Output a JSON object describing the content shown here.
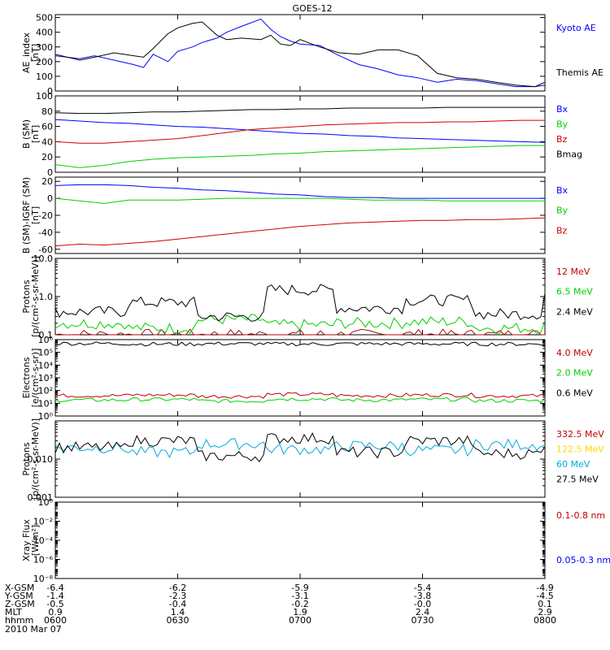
{
  "title": "GOES-12",
  "colors": {
    "black": "#000000",
    "blue": "#0000ff",
    "red": "#d00000",
    "green": "#00d000",
    "yellow": "#ffd800",
    "cyan": "#00aadd",
    "darkred": "#c00000"
  },
  "x_ticks": {
    "x_gsm": [
      "-6.4",
      "-6.2",
      "-5.9",
      "-5.4",
      "-4.9"
    ],
    "y_gsm": [
      "-1.4",
      "-2.3",
      "-3.1",
      "-3.8",
      "-4.5"
    ],
    "z_gsm": [
      "-0.5",
      "-0.4",
      "-0.2",
      "-0.0",
      "0.1"
    ],
    "mlt": [
      "0.9",
      "1.4",
      "1.9",
      "2.4",
      "2.9"
    ],
    "hhmm": [
      "0600",
      "0630",
      "0700",
      "0730",
      "0800"
    ]
  },
  "row_labels": {
    "x_gsm": "X-GSM",
    "y_gsm": "Y-GSM",
    "z_gsm": "Z-GSM",
    "mlt": "MLT",
    "hhmm": "hhmm"
  },
  "date": "2010 Mar 07",
  "chart_data": [
    {
      "type": "line",
      "ylabel": "AE_index [nT]",
      "ylabel_line1": "AE_index",
      "ylabel_line2": "[nT]",
      "ylim": [
        0,
        520
      ],
      "yticks": [
        "500",
        "400",
        "300",
        "200",
        "100",
        "0"
      ],
      "ytick_values": [
        500,
        400,
        300,
        200,
        100,
        0
      ],
      "x": [
        0,
        0.05,
        0.08,
        0.12,
        0.16,
        0.18,
        0.2,
        0.23,
        0.25,
        0.28,
        0.3,
        0.33,
        0.35,
        0.38,
        0.42,
        0.44,
        0.46,
        0.48,
        0.5,
        0.54,
        0.58,
        0.62,
        0.66,
        0.7,
        0.74,
        0.78,
        0.82,
        0.86,
        0.9,
        0.94,
        0.98,
        1
      ],
      "series": [
        {
          "name": "Kyoto AE",
          "color": "blue",
          "values": [
            240,
            220,
            240,
            210,
            180,
            160,
            250,
            200,
            270,
            300,
            330,
            360,
            400,
            440,
            490,
            420,
            370,
            340,
            320,
            310,
            240,
            180,
            150,
            110,
            90,
            60,
            80,
            70,
            50,
            30,
            30,
            40
          ]
        },
        {
          "name": "Themis AE",
          "color": "black",
          "values": [
            250,
            210,
            230,
            260,
            240,
            230,
            290,
            390,
            430,
            460,
            470,
            380,
            350,
            360,
            350,
            380,
            320,
            310,
            350,
            300,
            260,
            250,
            280,
            280,
            240,
            120,
            90,
            80,
            60,
            40,
            30,
            60
          ]
        }
      ]
    },
    {
      "type": "line",
      "ylabel": "B (SM) [nT]",
      "ylabel_line1": "B (SM)",
      "ylabel_line2": "[nT]",
      "ylim": [
        0,
        100
      ],
      "yticks": [
        "100",
        "80",
        "60",
        "40",
        "20",
        "0"
      ],
      "ytick_values": [
        100,
        80,
        60,
        40,
        20,
        0
      ],
      "x": [
        0,
        0.05,
        0.1,
        0.15,
        0.2,
        0.25,
        0.3,
        0.35,
        0.4,
        0.45,
        0.5,
        0.55,
        0.6,
        0.65,
        0.7,
        0.75,
        0.8,
        0.85,
        0.9,
        0.95,
        1
      ],
      "series": [
        {
          "name": "Bx",
          "color": "blue",
          "values": [
            69,
            67,
            65,
            64,
            62,
            60,
            59,
            57,
            55,
            53,
            51,
            50,
            48,
            47,
            45,
            44,
            43,
            42,
            41,
            40,
            39
          ]
        },
        {
          "name": "By",
          "color": "green",
          "values": [
            10,
            6,
            9,
            14,
            17,
            19,
            20,
            21,
            22,
            24,
            25,
            27,
            28,
            29,
            30,
            31,
            32,
            33,
            34,
            35,
            35
          ]
        },
        {
          "name": "Bz",
          "color": "red",
          "values": [
            40,
            38,
            38,
            40,
            42,
            44,
            48,
            52,
            56,
            58,
            60,
            62,
            63,
            64,
            65,
            65,
            66,
            66,
            67,
            68,
            68
          ]
        },
        {
          "name": "Bmag",
          "color": "black",
          "values": [
            78,
            77,
            77,
            78,
            79,
            79,
            80,
            81,
            82,
            82,
            83,
            83,
            84,
            84,
            84,
            84,
            85,
            85,
            85,
            85,
            85
          ]
        }
      ]
    },
    {
      "type": "line",
      "ylabel": "B (SM)-IGRF (SM) [nT]",
      "ylabel_line1": "B (SM)-IGRF (SM)",
      "ylabel_line2": "[nT]",
      "ylim": [
        -65,
        25
      ],
      "yticks": [
        "20",
        "0",
        "-20",
        "-40",
        "-60"
      ],
      "ytick_values": [
        20,
        0,
        -20,
        -40,
        -60
      ],
      "x": [
        0,
        0.05,
        0.1,
        0.15,
        0.2,
        0.25,
        0.3,
        0.35,
        0.4,
        0.45,
        0.5,
        0.55,
        0.6,
        0.65,
        0.7,
        0.75,
        0.8,
        0.85,
        0.9,
        0.95,
        1
      ],
      "series": [
        {
          "name": "Bx",
          "color": "blue",
          "values": [
            15,
            16,
            16,
            15,
            13,
            12,
            10,
            9,
            7,
            5,
            4,
            2,
            1,
            1,
            0,
            0,
            0,
            0,
            0,
            0,
            0
          ]
        },
        {
          "name": "By",
          "color": "green",
          "values": [
            0,
            -3,
            -6,
            -2,
            -2,
            -2,
            -1,
            0,
            0,
            0,
            0,
            0,
            -1,
            -2,
            -2,
            -2,
            -3,
            -3,
            -3,
            -3,
            -3
          ]
        },
        {
          "name": "Bz",
          "color": "red",
          "values": [
            -56,
            -54,
            -55,
            -53,
            -51,
            -48,
            -45,
            -42,
            -39,
            -36,
            -33,
            -31,
            -29,
            -28,
            -27,
            -26,
            -26,
            -25,
            -25,
            -24,
            -23
          ]
        }
      ]
    },
    {
      "type": "line",
      "ylabel": "Protons [p/(cm²-s-sr-MeV)]",
      "ylabel_line1": "Protons",
      "ylabel_line2": "[p/(cm²-s-sr-MeV)]",
      "log_scale": true,
      "ylim": [
        0.1,
        10
      ],
      "yticks": [
        "10.0",
        "1.0",
        "0.1"
      ],
      "ytick_values": [
        10,
        1,
        0.1
      ],
      "series": [
        {
          "name": "12 MeV",
          "color": "darkred",
          "values": [
            0.1,
            0.1,
            0.1,
            0.1,
            0.1,
            0.1,
            0.1,
            0.1
          ]
        },
        {
          "name": "6.5 MeV",
          "color": "green",
          "values": [
            0.2,
            0.15,
            0.25,
            0.18,
            0.2,
            0.22,
            0.15,
            0.2
          ]
        },
        {
          "name": "2.4 MeV",
          "color": "black",
          "values": [
            0.4,
            0.7,
            0.3,
            1.5,
            0.5,
            0.8,
            0.35,
            1.2
          ]
        }
      ]
    },
    {
      "type": "line",
      "ylabel": "Electrons [e/(cm²-s-sr)]",
      "ylabel_line1": "Electrons",
      "ylabel_line2": "[e/(cm²-s-sr)]",
      "log_scale": true,
      "ylim": [
        1,
        1000000
      ],
      "yticks": [
        "10⁶",
        "10⁵",
        "10⁴",
        "10³",
        "10²",
        "10¹",
        "10⁰"
      ],
      "ytick_values": [
        1000000,
        100000,
        10000,
        1000,
        100,
        10,
        1
      ],
      "series": [
        {
          "name": "4.0 MeV",
          "color": "darkred",
          "values": [
            40,
            45,
            35,
            50,
            40,
            45,
            38,
            42
          ]
        },
        {
          "name": "2.0 MeV",
          "color": "green",
          "values": [
            18,
            20,
            15,
            22,
            18,
            20,
            16,
            19
          ]
        },
        {
          "name": "0.6 MeV",
          "color": "black",
          "values": [
            500000,
            450000,
            480000,
            450000,
            470000,
            460000,
            450000,
            470000
          ]
        }
      ]
    },
    {
      "type": "line",
      "ylabel": "Protons [p/(cm²-s-sr-MeV)]",
      "ylabel_line1": "Protons",
      "ylabel_line2": "[p/(cm²-s-sr-MeV)]",
      "log_scale": true,
      "ylim": [
        0.001,
        0.1
      ],
      "yticks": [
        "0.010",
        "0.001"
      ],
      "ytick_values": [
        0.01,
        0.001
      ],
      "series": [
        {
          "name": "332.5 MeV",
          "color": "darkred",
          "values": []
        },
        {
          "name": "122.5 MeV",
          "color": "yellow",
          "values": []
        },
        {
          "name": "60 MeV",
          "color": "cyan",
          "values": [
            0.02,
            0.015,
            0.025,
            0.018,
            0.022,
            0.017,
            0.024,
            0.02
          ]
        },
        {
          "name": "27.5 MeV",
          "color": "black",
          "values": [
            0.02,
            0.03,
            0.012,
            0.035,
            0.015,
            0.03,
            0.014,
            0.028
          ]
        }
      ]
    },
    {
      "type": "line",
      "ylabel": "Xray Flux [W/m²]",
      "ylabel_line1": "Xray Flux",
      "ylabel_line2": "[W/m²]",
      "log_scale": true,
      "ylim": [
        1e-08,
        1
      ],
      "yticks": [
        "10⁰",
        "10⁻²",
        "10⁻⁴",
        "10⁻⁶",
        "10⁻⁸"
      ],
      "ytick_values": [
        1,
        0.01,
        0.0001,
        1e-06,
        1e-08
      ],
      "series": [
        {
          "name": "0.1-0.8 nm",
          "color": "darkred",
          "values": []
        },
        {
          "name": "0.05-0.3 nm",
          "color": "blue",
          "values": []
        }
      ]
    }
  ]
}
